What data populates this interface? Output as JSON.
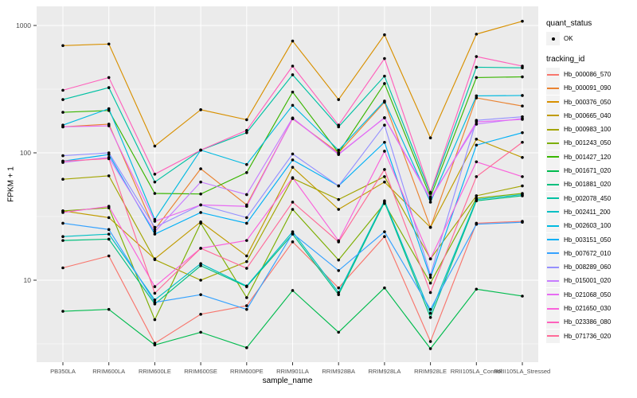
{
  "figure": {
    "kind": "ggplot2 line plot with points, log10 y scale"
  },
  "colors": {
    "panel_bg": "#EBEBEB",
    "grid_major": "#FFFFFF",
    "grid_minor": "#FFFFFF",
    "tick_text": "#4D4D4D",
    "tick_mark": "#333333",
    "point": "#000000",
    "legend_key_bg": "#F2F2F2"
  },
  "axes": {
    "x": {
      "title": "sample_name",
      "categories": [
        "PB350LA",
        "RRIM600LA",
        "RRIM600LE",
        "RRIM600SE",
        "RRIM600PE",
        "RRIM901LA",
        "RRIM928BA",
        "RRIM928LA",
        "RRIM928LE",
        "RRII105LA_Control",
        "RRII105LA_Stressed"
      ]
    },
    "y": {
      "title": "FPKM + 1",
      "scale": "log10",
      "tick_labels": [
        "10",
        "100",
        "1000"
      ],
      "tick_values": [
        10,
        100,
        1000
      ],
      "minor_values": [
        3.162,
        31.62,
        316.2
      ]
    }
  },
  "legend": {
    "quant": {
      "title": "quant_status",
      "items": [
        {
          "label": "OK",
          "symbol": "point"
        }
      ]
    },
    "tracking": {
      "title": "tracking_id",
      "items": [
        {
          "label": "Hb_000086_570",
          "color": "#F8766D"
        },
        {
          "label": "Hb_000091_090",
          "color": "#EA8331"
        },
        {
          "label": "Hb_000376_050",
          "color": "#D89000"
        },
        {
          "label": "Hb_000665_040",
          "color": "#C09B00"
        },
        {
          "label": "Hb_000983_100",
          "color": "#A3A500"
        },
        {
          "label": "Hb_001243_050",
          "color": "#7CAE00"
        },
        {
          "label": "Hb_001427_120",
          "color": "#39B600"
        },
        {
          "label": "Hb_001671_020",
          "color": "#00BB4E"
        },
        {
          "label": "Hb_001881_020",
          "color": "#00BF7D"
        },
        {
          "label": "Hb_002078_450",
          "color": "#00C1A3"
        },
        {
          "label": "Hb_002411_200",
          "color": "#00BFC4"
        },
        {
          "label": "Hb_002603_100",
          "color": "#00BAE0"
        },
        {
          "label": "Hb_003151_050",
          "color": "#00B0F6"
        },
        {
          "label": "Hb_007672_010",
          "color": "#35A2FF"
        },
        {
          "label": "Hb_008289_060",
          "color": "#9590FF"
        },
        {
          "label": "Hb_015001_020",
          "color": "#C77CFF"
        },
        {
          "label": "Hb_021068_050",
          "color": "#E76BF3"
        },
        {
          "label": "Hb_021650_030",
          "color": "#FA62DB"
        },
        {
          "label": "Hb_023386_080",
          "color": "#FF62BC"
        },
        {
          "label": "Hb_071736_020",
          "color": "#FF6A98"
        }
      ]
    }
  },
  "chart_data": {
    "type": "line",
    "title": "",
    "xlabel": "sample_name",
    "ylabel": "FPKM + 1",
    "yscale": "log10",
    "ylim": [
      2.27,
      1276
    ],
    "grid": true,
    "legend_position": "right",
    "point_marker": "black dot at every vertex",
    "categories": [
      "PB350LA",
      "RRIM600LA",
      "RRIM600LE",
      "RRIM600SE",
      "RRIM600PE",
      "RRIM901LA",
      "RRIM928BA",
      "RRIM928LA",
      "RRIM928LE",
      "RRII105LA_Control",
      "RRII105LA_Stressed"
    ],
    "series": [
      {
        "name": "Hb_000086_570",
        "color": "#F8766D",
        "values": [
          12.5,
          15.5,
          3.2,
          5.4,
          6.3,
          20,
          8.7,
          22,
          3.3,
          28,
          29
        ]
      },
      {
        "name": "Hb_000091_090",
        "color": "#EA8331",
        "values": [
          160,
          168,
          25,
          75,
          39,
          185,
          100,
          250,
          26,
          270,
          233
        ]
      },
      {
        "name": "Hb_000376_050",
        "color": "#D89000",
        "values": [
          695,
          715,
          113,
          218,
          182,
          755,
          262,
          845,
          131,
          855,
          1080
        ]
      },
      {
        "name": "Hb_000665_040",
        "color": "#C09B00",
        "values": [
          35,
          31,
          14.7,
          28.7,
          15.5,
          77,
          36,
          59,
          26,
          128,
          92
        ]
      },
      {
        "name": "Hb_000983_100",
        "color": "#A3A500",
        "values": [
          62,
          66,
          14.5,
          10,
          14,
          63,
          43,
          65,
          14.7,
          46,
          55
        ]
      },
      {
        "name": "Hb_001243_050",
        "color": "#7CAE00",
        "values": [
          35,
          37,
          4.9,
          28,
          7.3,
          36,
          14.4,
          40,
          9.5,
          44,
          48
        ]
      },
      {
        "name": "Hb_001427_120",
        "color": "#39B600",
        "values": [
          208,
          215,
          48,
          47.5,
          70,
          300,
          100,
          350,
          45,
          390,
          395
        ]
      },
      {
        "name": "Hb_001671_020",
        "color": "#00BB4E",
        "values": [
          5.7,
          5.9,
          3.1,
          3.9,
          2.95,
          8.3,
          3.9,
          8.7,
          2.9,
          8.5,
          7.5
        ]
      },
      {
        "name": "Hb_001881_020",
        "color": "#00BF7D",
        "values": [
          20.5,
          21,
          6.5,
          13,
          8.9,
          23,
          7.7,
          41,
          5.1,
          42,
          46
        ]
      },
      {
        "name": "Hb_002078_450",
        "color": "#00C1A3",
        "values": [
          262,
          325,
          59,
          105,
          144,
          410,
          160,
          400,
          48,
          470,
          465
        ]
      },
      {
        "name": "Hb_002411_200",
        "color": "#00BFC4",
        "values": [
          22,
          23,
          7,
          13.5,
          9,
          24,
          8,
          42,
          5.5,
          43,
          47
        ]
      },
      {
        "name": "Hb_002603_100",
        "color": "#00BAE0",
        "values": [
          165,
          222,
          30,
          105,
          81,
          236,
          105,
          255,
          41,
          280,
          282
        ]
      },
      {
        "name": "Hb_003151_050",
        "color": "#00B0F6",
        "values": [
          86,
          97,
          23,
          34,
          28,
          88,
          55,
          121,
          10.5,
          115,
          144
        ]
      },
      {
        "name": "Hb_007672_010",
        "color": "#35A2FF",
        "values": [
          28,
          25,
          6.7,
          7.7,
          5.9,
          23.3,
          11.9,
          24,
          5.9,
          27.5,
          28.5
        ]
      },
      {
        "name": "Hb_008289_060",
        "color": "#9590FF",
        "values": [
          95,
          100,
          26,
          39,
          31,
          98,
          55,
          165,
          11,
          180,
          192
        ]
      },
      {
        "name": "Hb_015001_020",
        "color": "#C77CFF",
        "values": [
          84,
          92,
          24,
          59,
          47,
          188,
          97,
          189,
          44,
          168,
          186
        ]
      },
      {
        "name": "Hb_021068_050",
        "color": "#E76BF3",
        "values": [
          160,
          163,
          29,
          39,
          38,
          186,
          98,
          188,
          43,
          175,
          183
        ]
      },
      {
        "name": "Hb_021650_030",
        "color": "#FA62DB",
        "values": [
          34,
          38,
          8.9,
          17.8,
          20.5,
          63.8,
          20.4,
          103,
          14.7,
          85,
          65
        ]
      },
      {
        "name": "Hb_023386_080",
        "color": "#FF62BC",
        "values": [
          310,
          390,
          68,
          105,
          150,
          480,
          165,
          550,
          49,
          570,
          480
        ]
      },
      {
        "name": "Hb_071736_020",
        "color": "#FF6A98",
        "values": [
          86,
          90,
          7.9,
          17.8,
          12.4,
          41,
          20,
          74,
          8,
          65,
          121
        ]
      }
    ]
  }
}
